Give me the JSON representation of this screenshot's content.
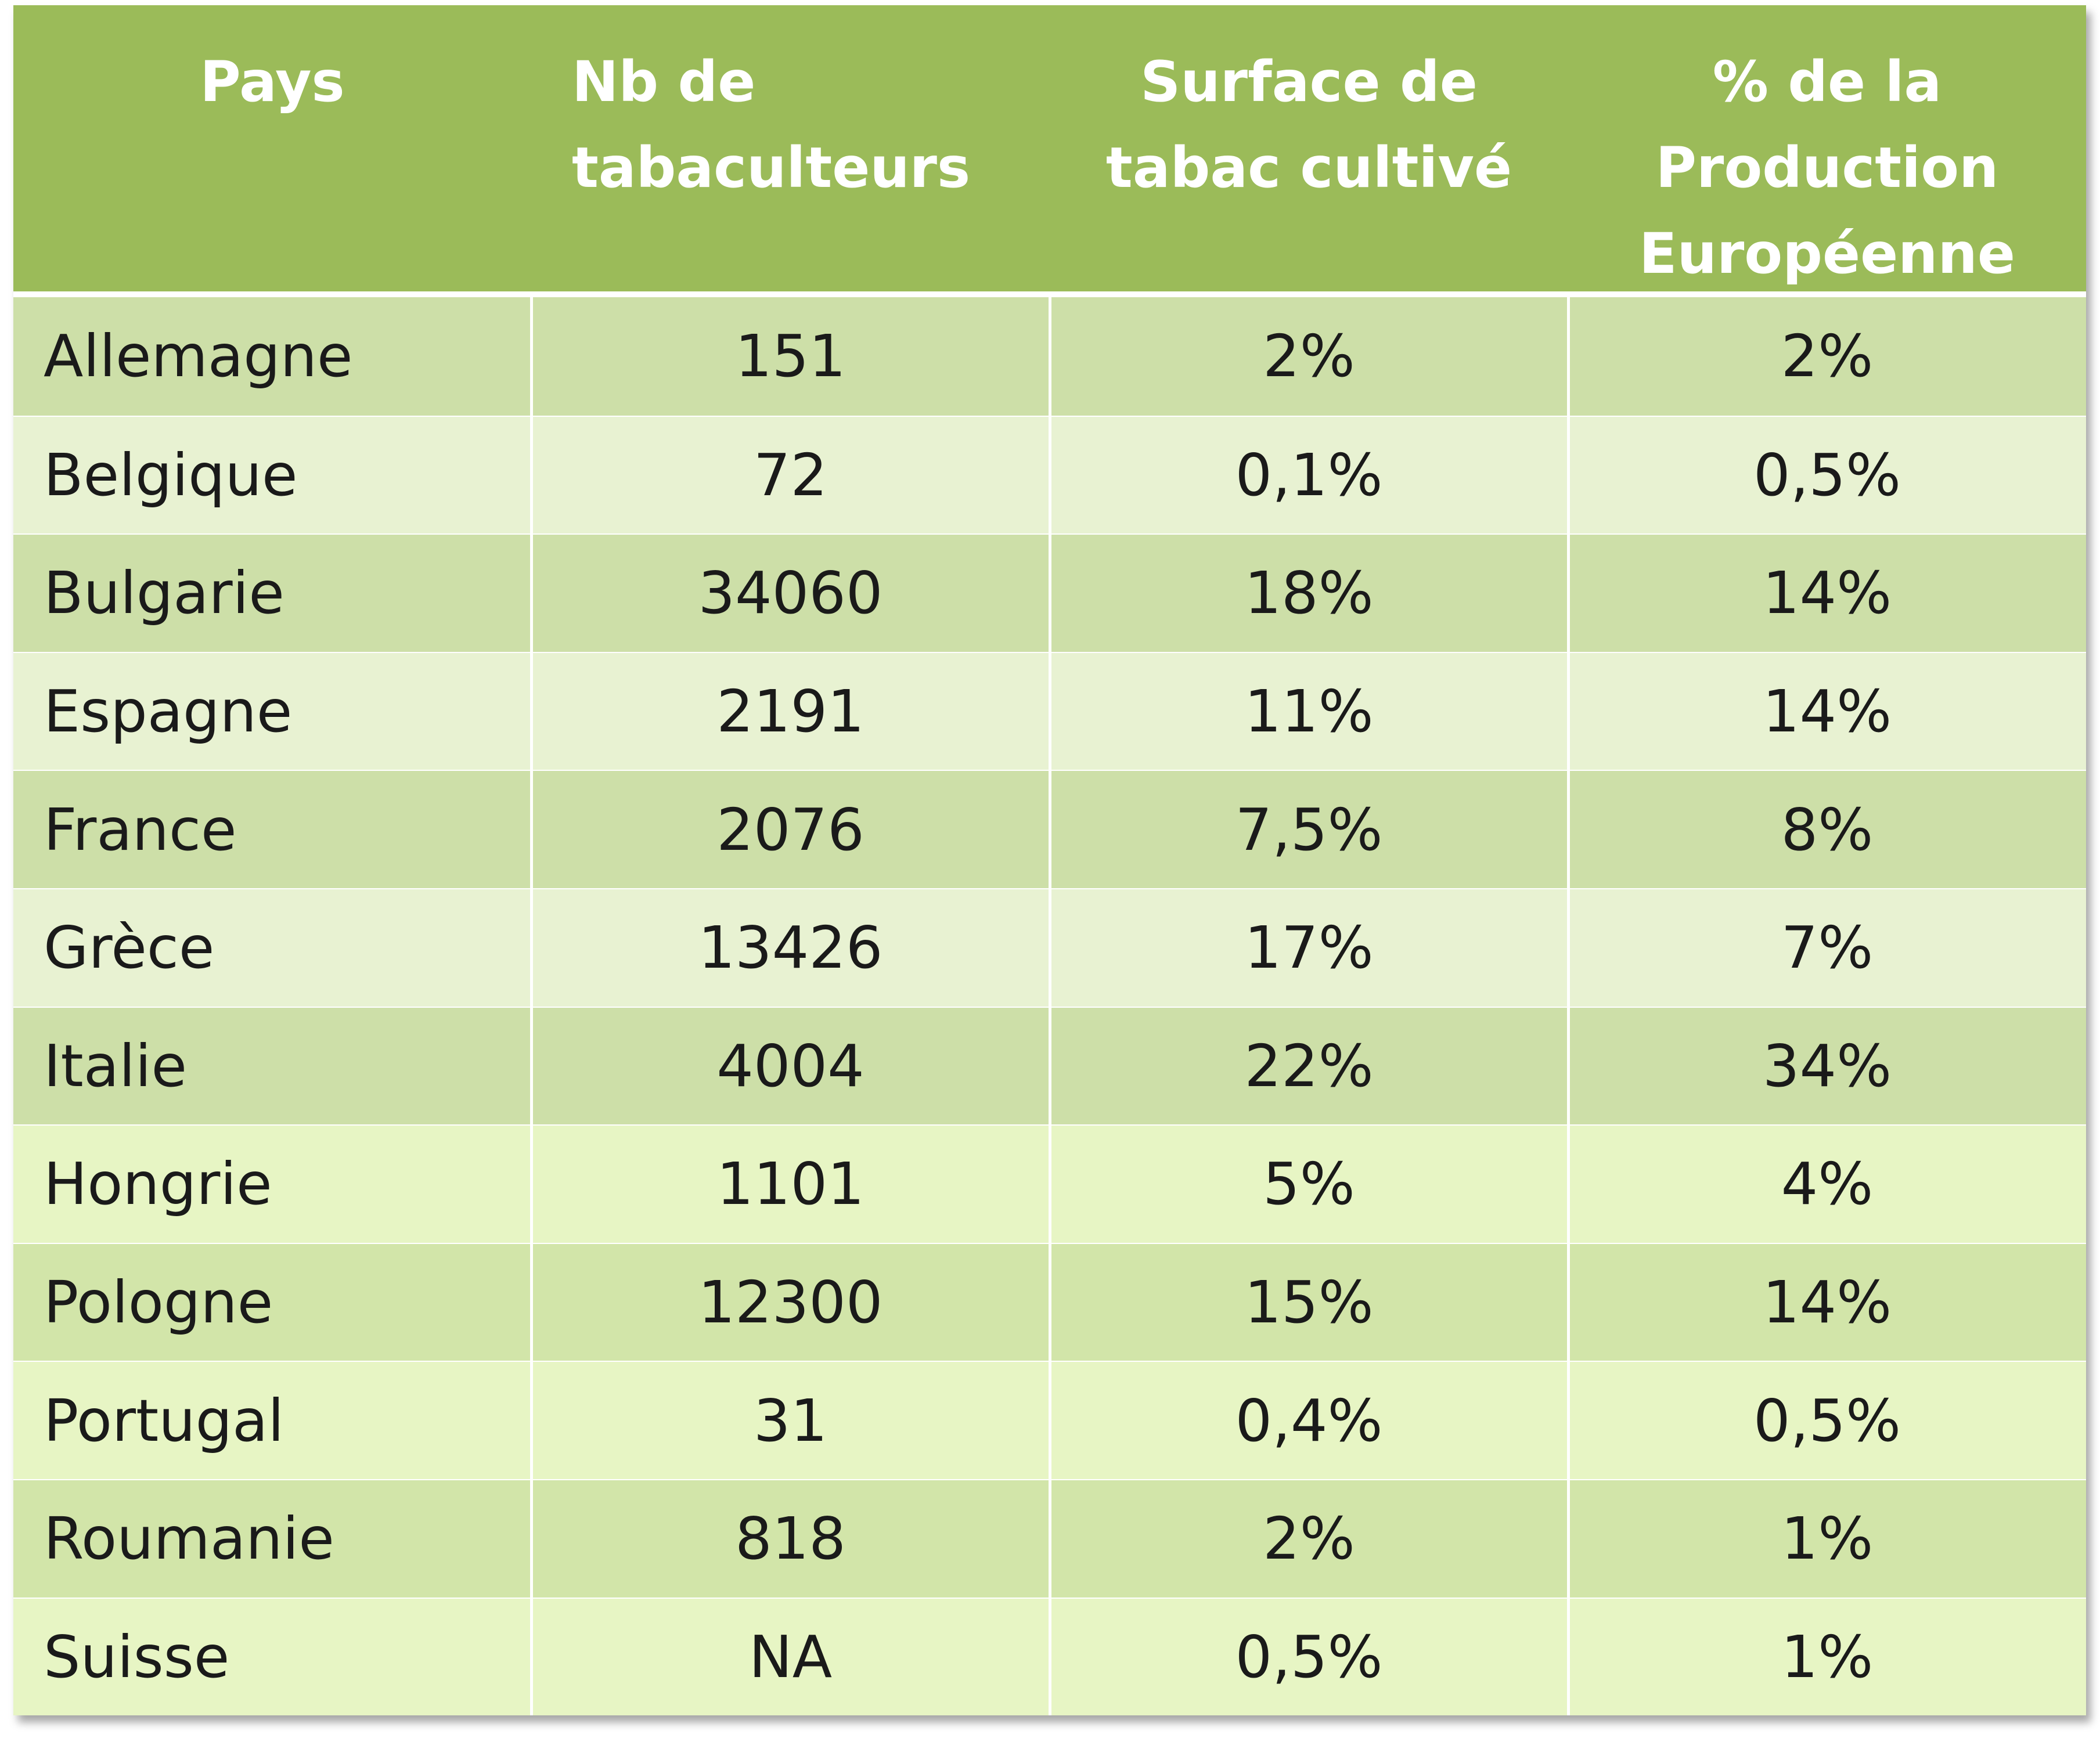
{
  "table": {
    "headers": [
      "Pays",
      "Nb de\ntabaculteurs",
      "Surface de\ntabac cultivé",
      "% de la\nProduction\nEuropéenne"
    ],
    "rows": [
      [
        "Allemagne",
        "151",
        "2%",
        "2%"
      ],
      [
        "Belgique",
        "72",
        "0,1%",
        "0,5%"
      ],
      [
        "Bulgarie",
        "34060",
        "18%",
        "14%"
      ],
      [
        "Espagne",
        "2191",
        "11%",
        "14%"
      ],
      [
        "France",
        "2076",
        "7,5%",
        "8%"
      ],
      [
        "Grèce",
        "13426",
        "17%",
        "7%"
      ],
      [
        "Italie",
        "4004",
        "22%",
        "34%"
      ],
      [
        "Hongrie",
        "1101",
        "5%",
        "4%"
      ],
      [
        "Pologne",
        "12300",
        "15%",
        "14%"
      ],
      [
        "Portugal",
        "31",
        "0,4%",
        "0,5%"
      ],
      [
        "Roumanie",
        "818",
        "2%",
        "1%"
      ],
      [
        "Suisse",
        "NA",
        "0,5%",
        "1%"
      ]
    ]
  },
  "colors": {
    "header_bg": "#9bbb59",
    "header_text": "#ffffff",
    "row_dark": "#cddfa8",
    "row_light": "#e8f2d2"
  }
}
